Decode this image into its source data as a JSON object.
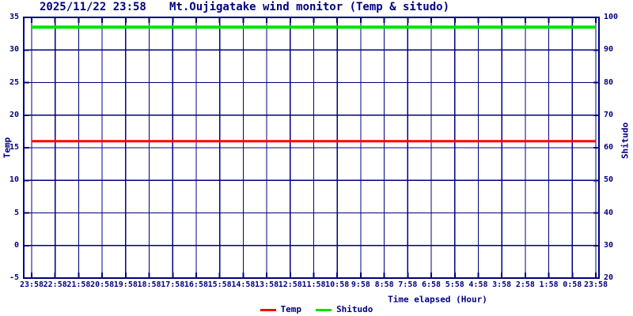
{
  "header": {
    "datetime": "2025/11/22 23:58",
    "title": "Mt.Oujigatake wind monitor (Temp & situdo)"
  },
  "colors": {
    "axis": "#000080",
    "background": "#ffffff",
    "temp_line": "#ff0000",
    "shitudo_line": "#00e000"
  },
  "chart_data": {
    "type": "line",
    "title": "Mt.Oujigatake wind monitor (Temp & situdo)",
    "subtitle_datetime": "2025/11/22 23:58",
    "xlabel": "Time elapsed (Hour)",
    "ylabel": "Temp",
    "y2label": "Shitudo",
    "ylim": [
      -5,
      35
    ],
    "y2lim": [
      20,
      100
    ],
    "grid": true,
    "legend_position": "bottom-center",
    "x_ticks": [
      "23:58",
      "22:58",
      "21:58",
      "20:58",
      "19:58",
      "18:58",
      "17:58",
      "16:58",
      "15:58",
      "14:58",
      "13:58",
      "12:58",
      "11:58",
      "10:58",
      "9:58",
      "8:58",
      "7:58",
      "6:58",
      "5:58",
      "4:58",
      "3:58",
      "2:58",
      "1:58",
      "0:58",
      "23:58"
    ],
    "y_ticks": [
      35,
      30,
      25,
      20,
      15,
      10,
      5,
      0,
      -5
    ],
    "y2_ticks": [
      100,
      90,
      80,
      70,
      60,
      50,
      40,
      30,
      20
    ],
    "series": [
      {
        "name": "Temp",
        "axis": "left",
        "color": "#ff0000",
        "values": [
          16,
          16,
          16,
          16,
          16,
          16,
          16,
          16,
          16,
          16,
          16,
          16,
          16,
          16,
          16,
          16,
          16,
          16,
          16,
          16,
          16,
          16,
          16,
          16,
          16
        ]
      },
      {
        "name": "Shitudo",
        "axis": "right",
        "color": "#00e000",
        "values": [
          97,
          97,
          97,
          97,
          97,
          97,
          97,
          97,
          97,
          97,
          97,
          97,
          97,
          97,
          97,
          97,
          97,
          97,
          97,
          97,
          97,
          97,
          97,
          97,
          97
        ]
      }
    ]
  }
}
